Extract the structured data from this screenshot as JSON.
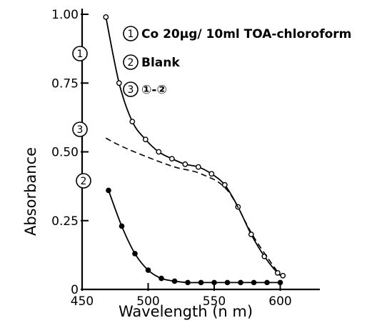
{
  "chart_data": {
    "type": "line",
    "title": "",
    "xlabel": "Wavelength (n m)",
    "ylabel": "Absorbance",
    "xlim": [
      450,
      630
    ],
    "ylim": [
      0,
      1.0
    ],
    "x_ticks": [
      450,
      500,
      550,
      600
    ],
    "x_tick_labels": [
      "450",
      "500",
      "550",
      "600"
    ],
    "y_ticks": [
      0,
      0.25,
      0.5,
      0.75,
      1.0
    ],
    "y_tick_labels": [
      "0",
      "0.25",
      "0.50",
      "0.75",
      "1.00"
    ],
    "grid": false,
    "legend_position": "top-right",
    "legend": [
      {
        "num": "1",
        "text": "Co 20μg/ 10ml TOA-chloroform"
      },
      {
        "num": "2",
        "text": "Blank"
      },
      {
        "num": "3",
        "text": "①-②"
      }
    ],
    "series": [
      {
        "name": "1",
        "style": "solid-open-markers",
        "x": [
          468,
          478,
          488,
          498,
          508,
          518,
          528,
          538,
          548,
          558,
          568,
          578,
          588,
          598,
          602
        ],
        "y": [
          0.99,
          0.75,
          0.61,
          0.545,
          0.5,
          0.475,
          0.455,
          0.445,
          0.42,
          0.38,
          0.3,
          0.2,
          0.12,
          0.06,
          0.05
        ]
      },
      {
        "name": "2",
        "style": "solid-filled-markers",
        "x": [
          470,
          480,
          490,
          500,
          510,
          520,
          530,
          540,
          550,
          560,
          570,
          580,
          590,
          600
        ],
        "y": [
          0.36,
          0.23,
          0.13,
          0.07,
          0.04,
          0.03,
          0.025,
          0.025,
          0.025,
          0.025,
          0.025,
          0.025,
          0.025,
          0.025
        ]
      },
      {
        "name": "3",
        "style": "dashed",
        "x": [
          468,
          480,
          500,
          520,
          540,
          560,
          580,
          600
        ],
        "y": [
          0.55,
          0.52,
          0.48,
          0.445,
          0.42,
          0.36,
          0.19,
          0.05
        ]
      }
    ]
  }
}
